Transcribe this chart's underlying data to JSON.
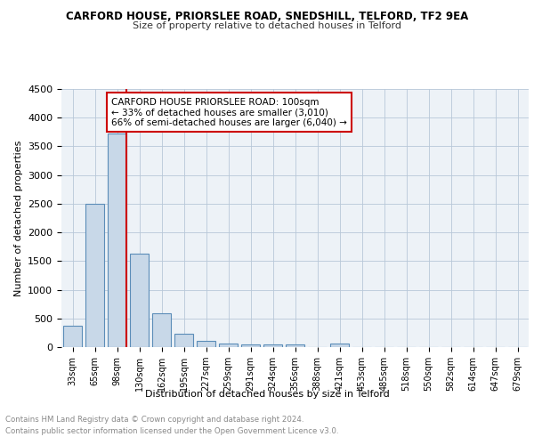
{
  "title1": "CARFORD HOUSE, PRIORSLEE ROAD, SNEDSHILL, TELFORD, TF2 9EA",
  "title2": "Size of property relative to detached houses in Telford",
  "xlabel": "Distribution of detached houses by size in Telford",
  "ylabel": "Number of detached properties",
  "categories": [
    "33sqm",
    "65sqm",
    "98sqm",
    "130sqm",
    "162sqm",
    "195sqm",
    "227sqm",
    "259sqm",
    "291sqm",
    "324sqm",
    "356sqm",
    "388sqm",
    "421sqm",
    "453sqm",
    "485sqm",
    "518sqm",
    "550sqm",
    "582sqm",
    "614sqm",
    "647sqm",
    "679sqm"
  ],
  "values": [
    375,
    2500,
    3720,
    1630,
    590,
    240,
    105,
    60,
    50,
    45,
    40,
    0,
    55,
    0,
    0,
    0,
    0,
    0,
    0,
    0,
    0
  ],
  "bar_color": "#c8d8e8",
  "bar_edge_color": "#5b8db8",
  "highlight_index": 2,
  "highlight_line_color": "#cc0000",
  "annotation_text": "CARFORD HOUSE PRIORSLEE ROAD: 100sqm\n← 33% of detached houses are smaller (3,010)\n66% of semi-detached houses are larger (6,040) →",
  "annotation_box_color": "#ffffff",
  "annotation_border_color": "#cc0000",
  "ylim": [
    0,
    4500
  ],
  "yticks": [
    0,
    500,
    1000,
    1500,
    2000,
    2500,
    3000,
    3500,
    4000,
    4500
  ],
  "footer_line1": "Contains HM Land Registry data © Crown copyright and database right 2024.",
  "footer_line2": "Contains public sector information licensed under the Open Government Licence v3.0.",
  "plot_bg_color": "#edf2f7"
}
